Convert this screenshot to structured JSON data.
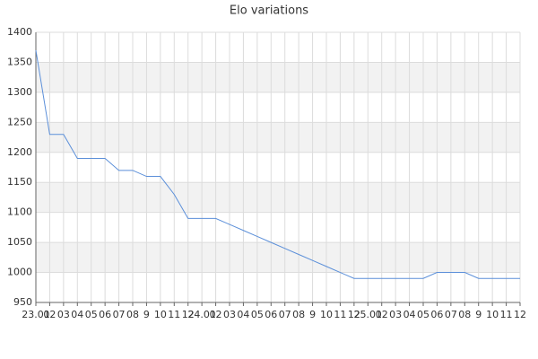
{
  "chart_data": {
    "type": "line",
    "title": "Elo variations",
    "categories": [
      "23.01",
      "02",
      "03",
      "04",
      "05",
      "06",
      "07",
      "08",
      "9",
      "10",
      "11",
      "12",
      "24.01",
      "02",
      "03",
      "04",
      "05",
      "06",
      "07",
      "08",
      "9",
      "10",
      "11",
      "12",
      "25.01",
      "02",
      "03",
      "04",
      "05",
      "06",
      "07",
      "08",
      "9",
      "10",
      "11",
      "12"
    ],
    "series": [
      {
        "name": "Elo",
        "color": "#5b8fd9",
        "values": [
          1370,
          1230,
          1230,
          1190,
          1190,
          1190,
          1170,
          1170,
          1160,
          1160,
          1130,
          1090,
          1090,
          1090,
          1080,
          1070,
          1060,
          1050,
          1040,
          1030,
          1020,
          1010,
          1000,
          990,
          990,
          990,
          990,
          990,
          990,
          1000,
          1000,
          1000,
          990,
          990,
          990,
          990
        ]
      }
    ],
    "ylim": [
      950,
      1400
    ],
    "yticks": [
      950,
      1000,
      1050,
      1100,
      1150,
      1200,
      1250,
      1300,
      1350,
      1400
    ],
    "grid": true
  }
}
